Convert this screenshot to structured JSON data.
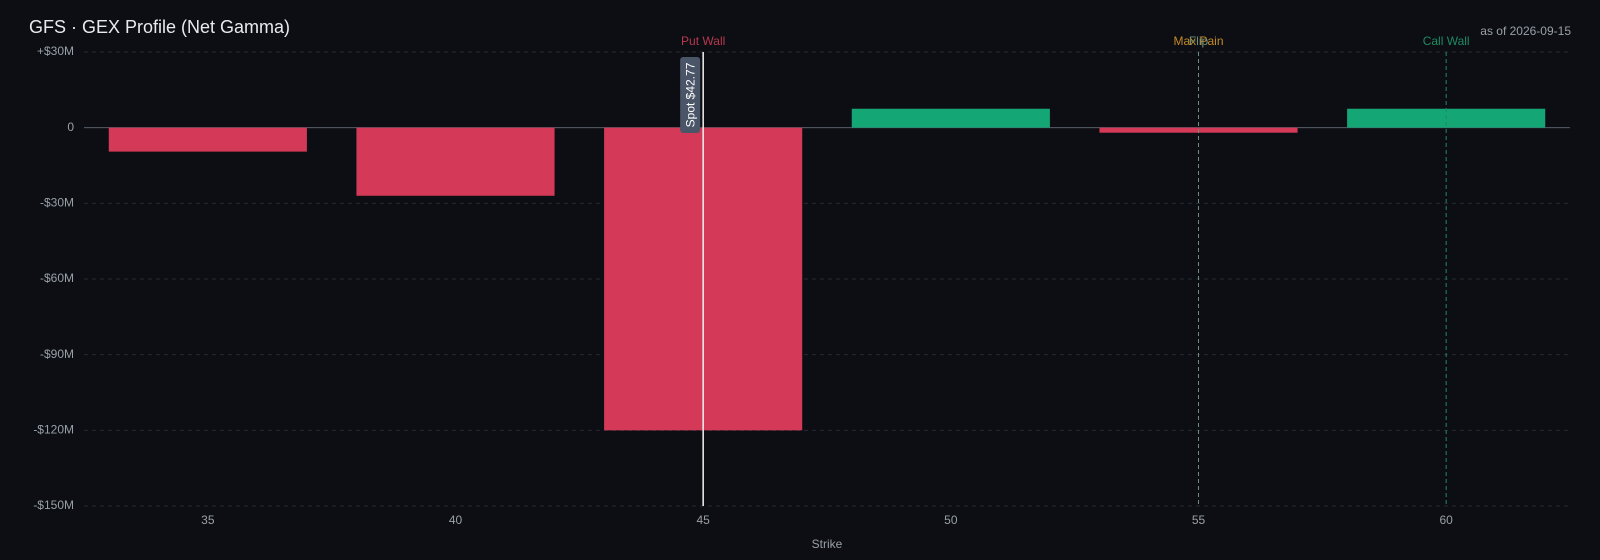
{
  "chart_data": {
    "type": "bar",
    "title": "GFS · GEX Profile (Net Gamma)",
    "subtitle": "as of 2026-09-15",
    "x_label": "Strike",
    "x": [
      35,
      40,
      45,
      50,
      55,
      60
    ],
    "series": [
      {
        "name": "Net Gamma",
        "values": [
          -9.5,
          -27,
          -120,
          7.5,
          -2,
          7.5
        ]
      }
    ],
    "positive_color": "#14a675",
    "negative_color": "#d43a57",
    "xlim": [
      32.5,
      62.5
    ],
    "xticks": [
      35,
      40,
      45,
      50,
      55,
      60
    ],
    "ylim": [
      -150,
      30
    ],
    "yticks": [
      {
        "value": 30,
        "label": "+$30M"
      },
      0,
      {
        "value": -30,
        "label": "-$30M"
      },
      {
        "value": -60,
        "label": "-$60M"
      },
      {
        "value": -90,
        "label": "-$90M"
      },
      {
        "value": -120,
        "label": "-$120M"
      },
      {
        "value": -150,
        "label": "-$150M"
      }
    ],
    "grid": true,
    "markers": [
      {
        "label": "Put Wall",
        "x": 45,
        "color": "#b7384f"
      },
      {
        "label": "Max Pain",
        "x": 55,
        "color": "#c48a26"
      },
      {
        "label": "Flip",
        "x": 55,
        "color": "#6f8f7a"
      },
      {
        "label": "Call Wall",
        "x": 60,
        "color": "#1f8a5f"
      }
    ],
    "spot": {
      "label": "Spot $42.77",
      "x": 45
    }
  }
}
